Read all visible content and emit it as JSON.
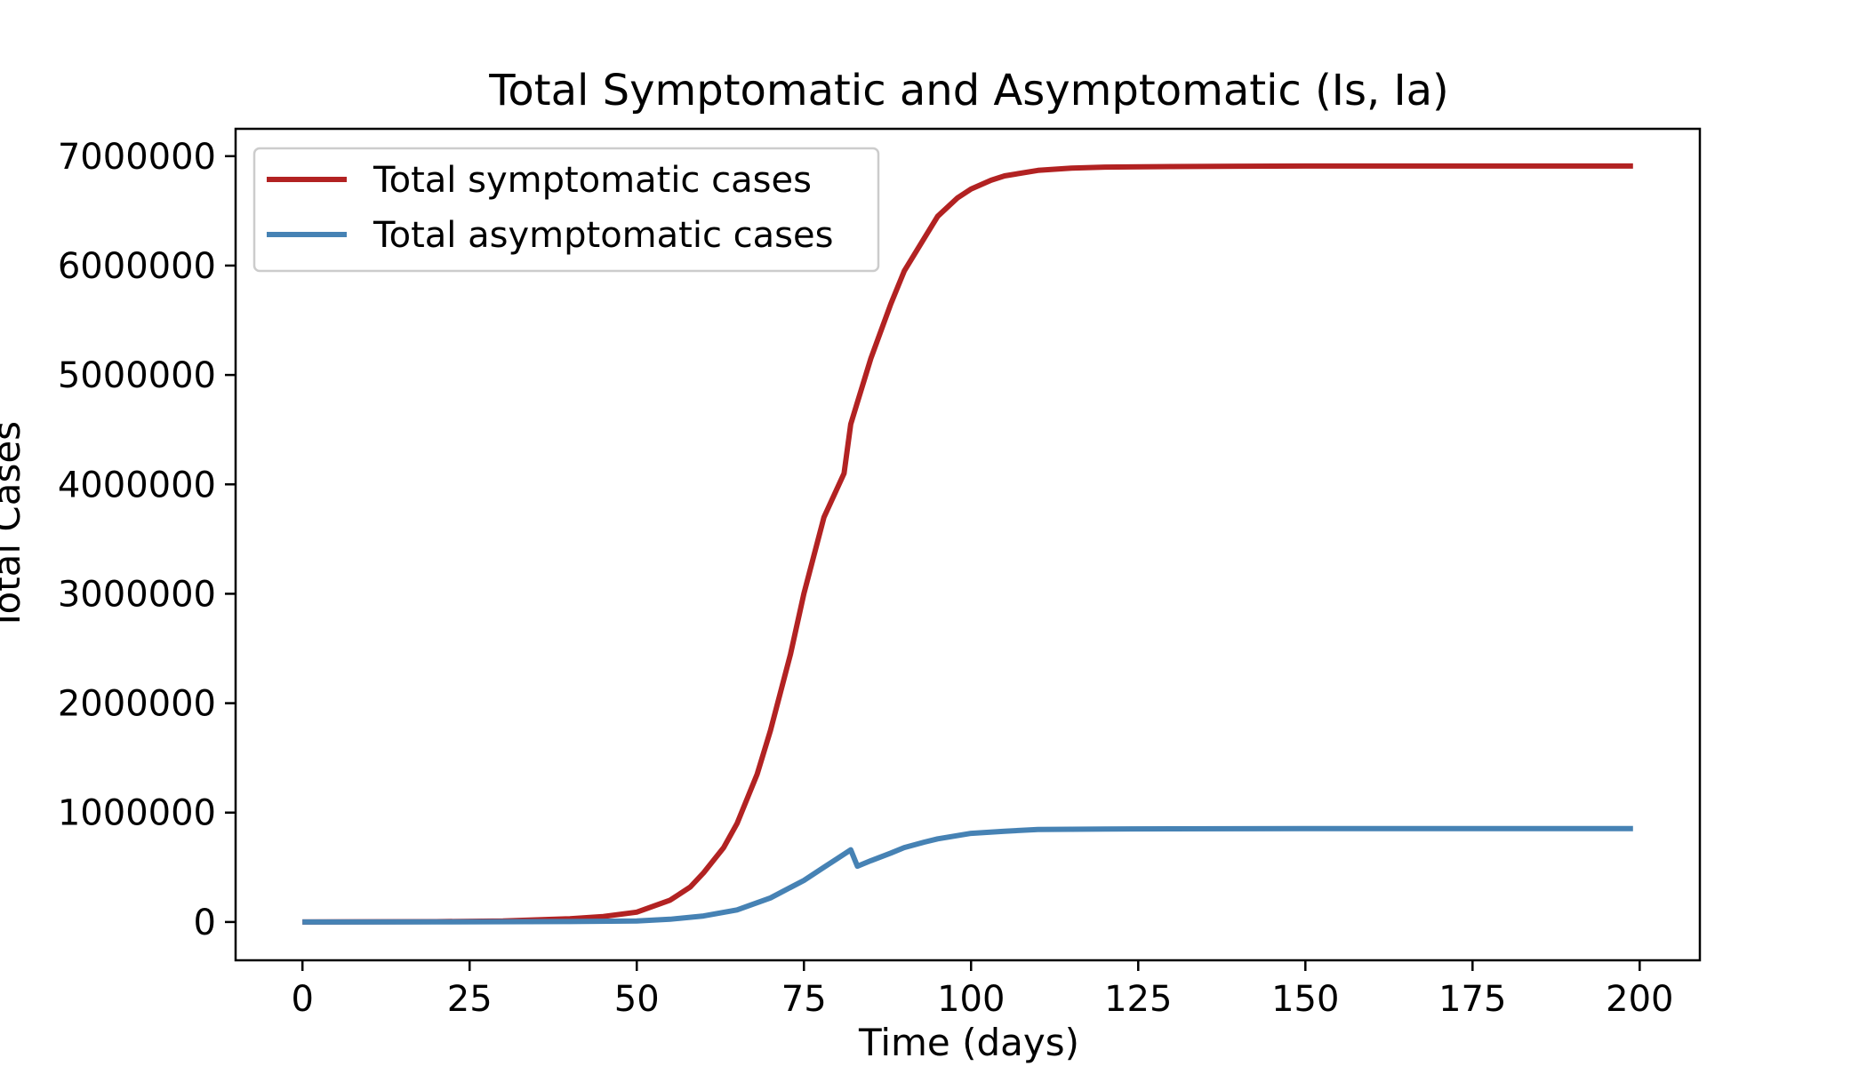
{
  "chart_data": {
    "type": "line",
    "title": "Total Symptomatic and Asymptomatic (Is, Ia)",
    "xlabel": "Time (days)",
    "ylabel": "Total Cases",
    "xlim": [
      -10,
      209
    ],
    "ylim": [
      -350000,
      7250000
    ],
    "xticks": [
      0,
      25,
      50,
      75,
      100,
      125,
      150,
      175,
      200
    ],
    "yticks": [
      0,
      1000000,
      2000000,
      3000000,
      4000000,
      5000000,
      6000000,
      7000000
    ],
    "grid": false,
    "legend_position": "upper-left",
    "series": [
      {
        "name": "Total symptomatic cases",
        "color": "#b22222",
        "x": [
          0,
          20,
          30,
          40,
          45,
          50,
          55,
          58,
          60,
          63,
          65,
          68,
          70,
          73,
          75,
          78,
          81,
          82,
          83,
          85,
          88,
          90,
          93,
          95,
          98,
          100,
          103,
          105,
          110,
          115,
          120,
          130,
          140,
          150,
          170,
          199
        ],
        "y": [
          0,
          3000,
          10000,
          30000,
          50000,
          90000,
          200000,
          320000,
          450000,
          680000,
          900000,
          1350000,
          1750000,
          2450000,
          3000000,
          3700000,
          4100000,
          4550000,
          4750000,
          5150000,
          5650000,
          5950000,
          6250000,
          6450000,
          6620000,
          6700000,
          6780000,
          6820000,
          6870000,
          6890000,
          6900000,
          6905000,
          6908000,
          6910000,
          6910000,
          6910000
        ]
      },
      {
        "name": "Total asymptomatic cases",
        "color": "#4682b4",
        "x": [
          0,
          20,
          40,
          50,
          55,
          60,
          65,
          70,
          75,
          78,
          80,
          82,
          83,
          85,
          88,
          90,
          93,
          95,
          100,
          105,
          110,
          120,
          130,
          150,
          199
        ],
        "y": [
          0,
          1000,
          4000,
          10000,
          25000,
          55000,
          110000,
          220000,
          380000,
          500000,
          580000,
          660000,
          510000,
          560000,
          630000,
          680000,
          730000,
          760000,
          810000,
          830000,
          845000,
          850000,
          852000,
          853000,
          853000
        ]
      }
    ]
  }
}
